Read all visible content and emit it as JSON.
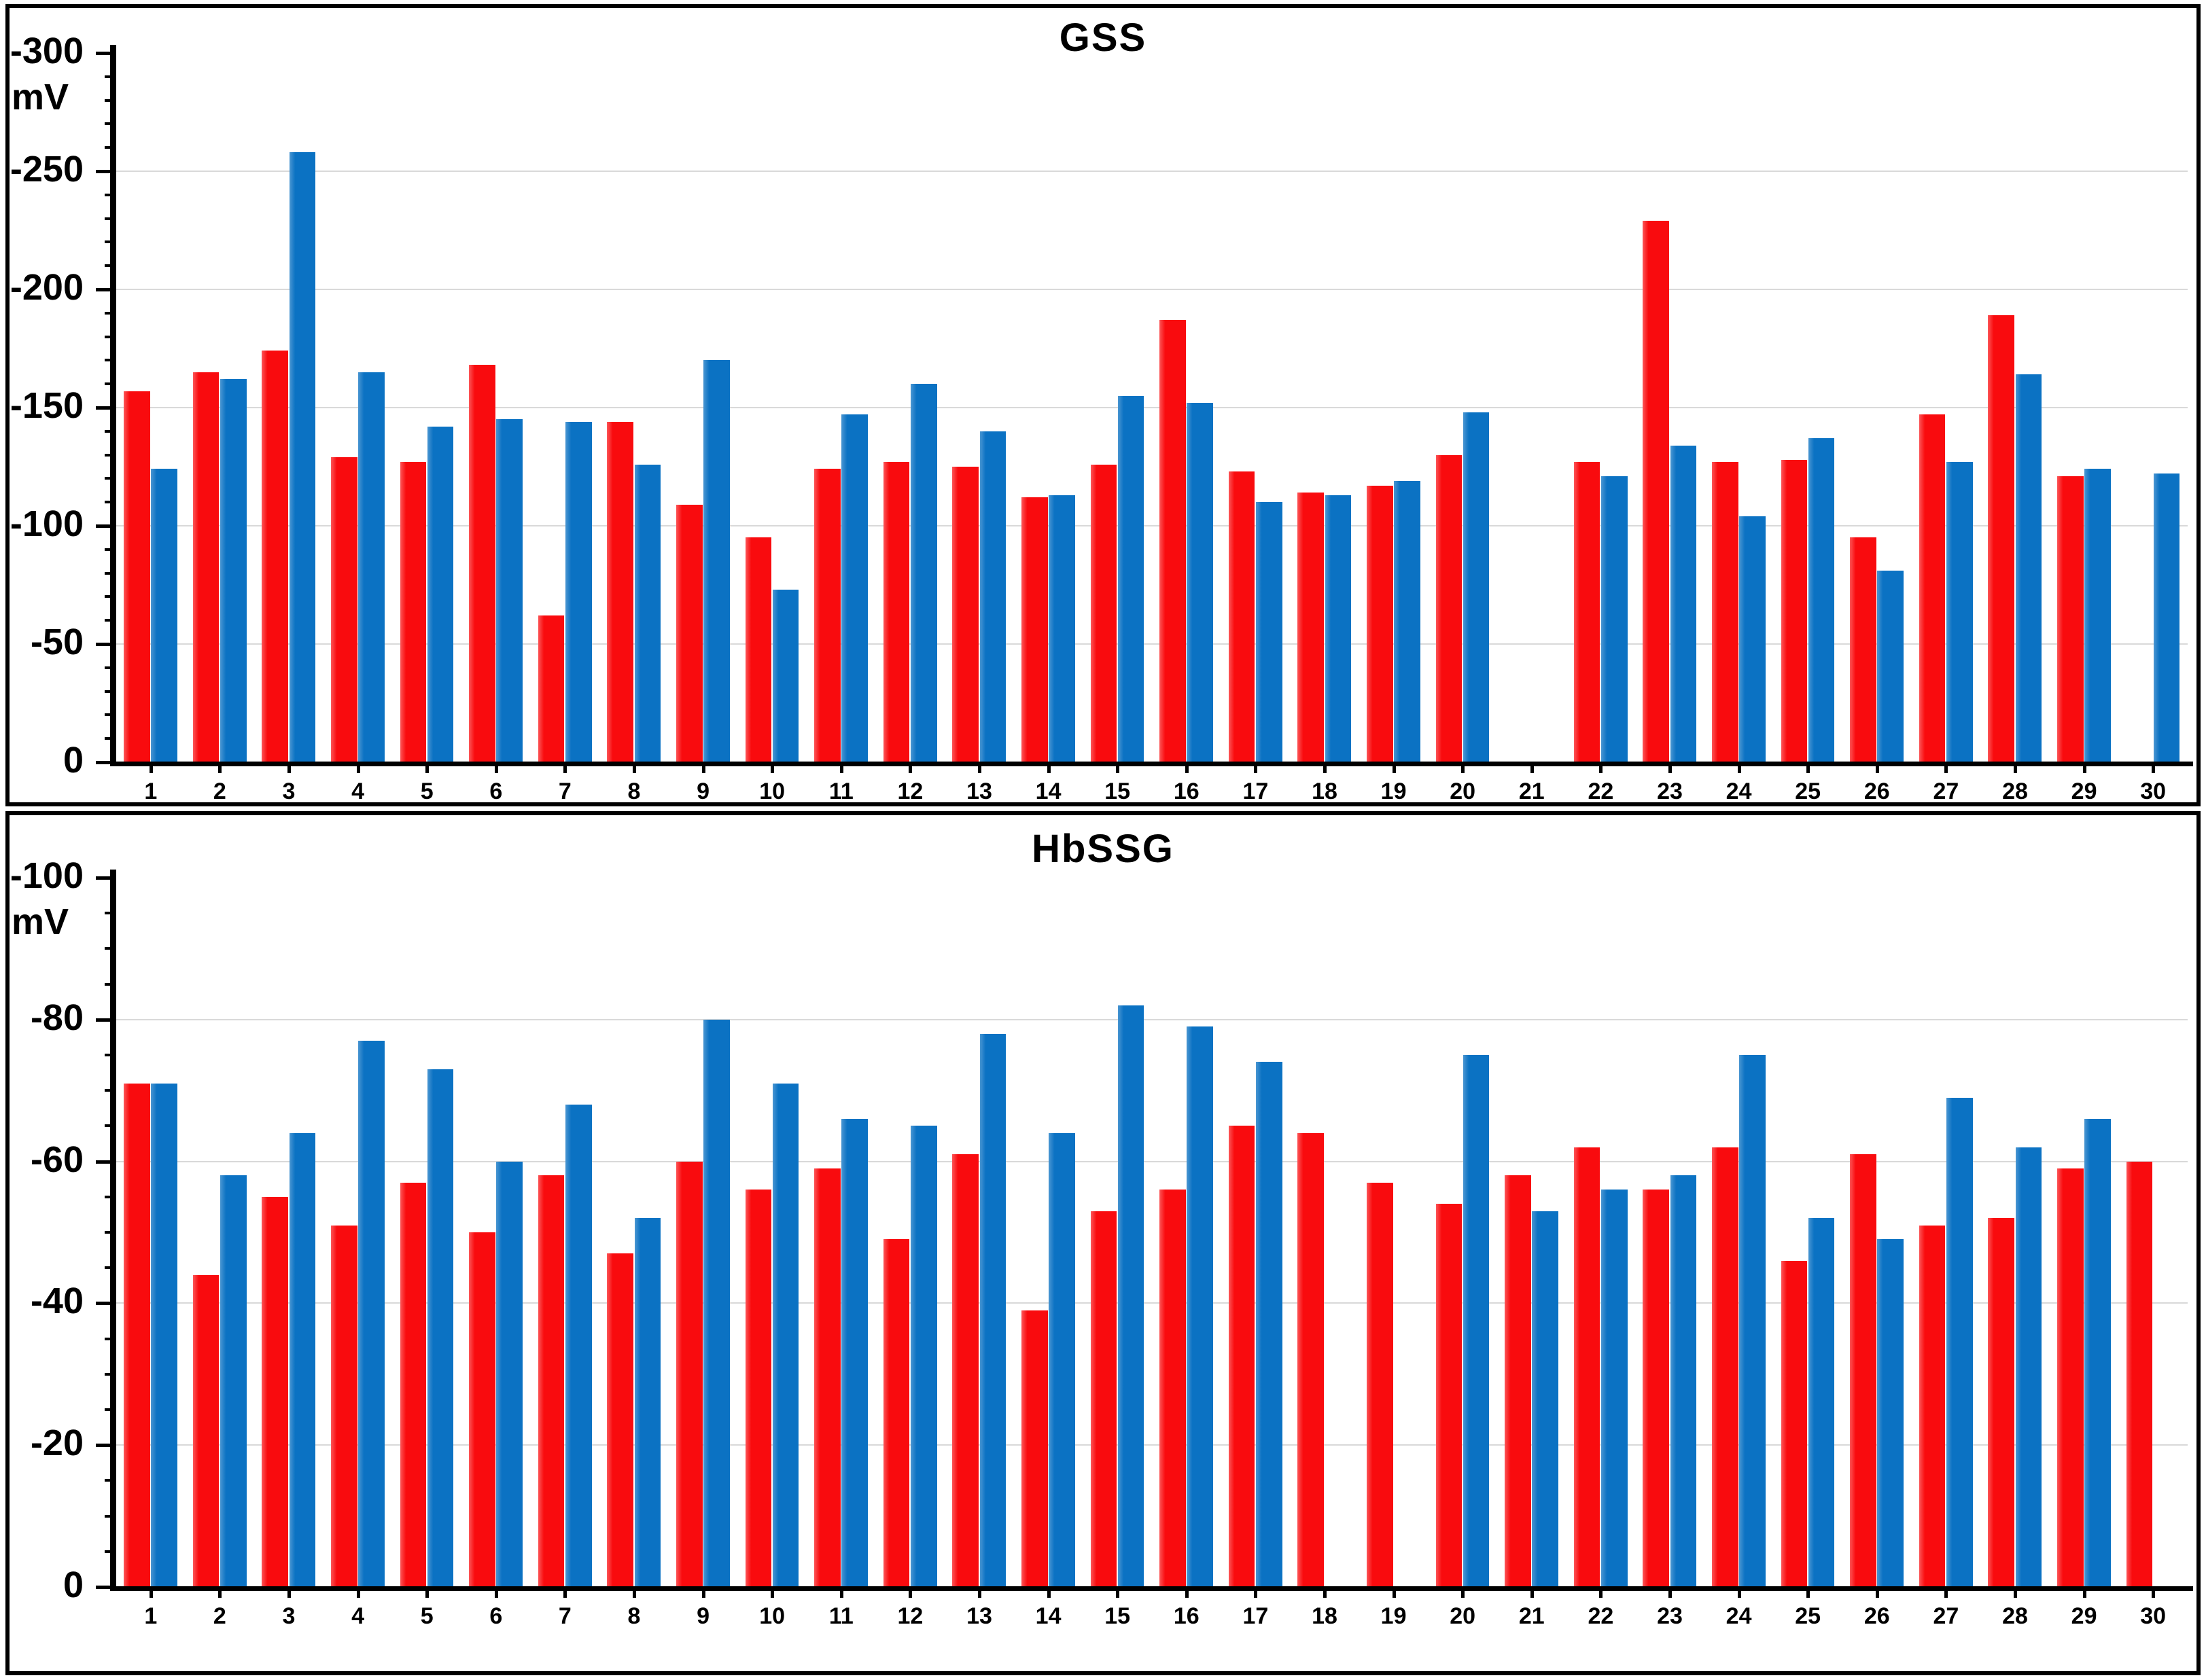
{
  "page": {
    "background": "#ffffff"
  },
  "colors": {
    "series_red": "#f90b0e",
    "series_red_edge": "#fc5658",
    "series_blue": "#0b72c3",
    "series_blue_edge": "#4a96d2",
    "gridline": "#d9d9d9",
    "axis": "#000000",
    "text": "#000000"
  },
  "chart_data": [
    {
      "type": "bar",
      "title": "GSS",
      "y_unit_label": "mV",
      "ylabel": "mV",
      "xlabel": "",
      "grid": "major-horizontal",
      "legend": "none",
      "y_axis": {
        "direction": "negative-up",
        "min": 0,
        "max": -300,
        "major_step": 50,
        "minor_step": 10,
        "tick_labels": [
          "0",
          "-50",
          "-100",
          "-150",
          "-200",
          "-250",
          "-300"
        ]
      },
      "categories": [
        "1",
        "2",
        "3",
        "4",
        "5",
        "6",
        "7",
        "8",
        "9",
        "10",
        "11",
        "12",
        "13",
        "14",
        "15",
        "16",
        "17",
        "18",
        "19",
        "20",
        "21",
        "22",
        "23",
        "24",
        "25",
        "26",
        "27",
        "28",
        "29",
        "30"
      ],
      "series": [
        {
          "name": "red",
          "color_key": "series_red",
          "values": [
            -157,
            -165,
            -174,
            -129,
            -127,
            -168,
            -62,
            -144,
            -109,
            -95,
            -124,
            -127,
            -125,
            -112,
            -126,
            -187,
            -123,
            -114,
            -117,
            -130,
            null,
            -127,
            -229,
            -127,
            -128,
            -95,
            -147,
            -189,
            -121,
            null
          ]
        },
        {
          "name": "blue",
          "color_key": "series_blue",
          "values": [
            -124,
            -162,
            -258,
            -165,
            -142,
            -145,
            -144,
            -126,
            -170,
            -73,
            -147,
            -160,
            -140,
            -113,
            -155,
            -152,
            -110,
            -113,
            -119,
            -148,
            null,
            -121,
            -134,
            -104,
            -137,
            -81,
            -127,
            -164,
            -124,
            -122
          ]
        }
      ]
    },
    {
      "type": "bar",
      "title": "HbSSG",
      "y_unit_label": "mV",
      "ylabel": "mV",
      "xlabel": "",
      "grid": "major-horizontal",
      "legend": "none",
      "y_axis": {
        "direction": "negative-up",
        "min": 0,
        "max": -100,
        "major_step": 20,
        "minor_step": 5,
        "tick_labels": [
          "0",
          "-20",
          "-40",
          "-60",
          "-80",
          "-100"
        ]
      },
      "categories": [
        "1",
        "2",
        "3",
        "4",
        "5",
        "6",
        "7",
        "8",
        "9",
        "10",
        "11",
        "12",
        "13",
        "14",
        "15",
        "16",
        "17",
        "18",
        "19",
        "20",
        "21",
        "22",
        "23",
        "24",
        "25",
        "26",
        "27",
        "28",
        "29",
        "30"
      ],
      "series": [
        {
          "name": "red",
          "color_key": "series_red",
          "values": [
            -71,
            -44,
            -55,
            -51,
            -57,
            -50,
            -58,
            -47,
            -60,
            -56,
            -59,
            -49,
            -61,
            -39,
            -53,
            -56,
            -65,
            -64,
            -57,
            -54,
            -58,
            -62,
            -56,
            -62,
            -46,
            -61,
            -51,
            -52,
            -59,
            -60
          ]
        },
        {
          "name": "blue",
          "color_key": "series_blue",
          "values": [
            -71,
            -58,
            -64,
            -77,
            -73,
            -60,
            -68,
            -52,
            -80,
            -71,
            -66,
            -65,
            -78,
            -64,
            -82,
            -79,
            -74,
            null,
            null,
            -75,
            -53,
            -56,
            -58,
            -75,
            -52,
            -49,
            -69,
            -62,
            -66,
            null
          ]
        }
      ]
    }
  ]
}
